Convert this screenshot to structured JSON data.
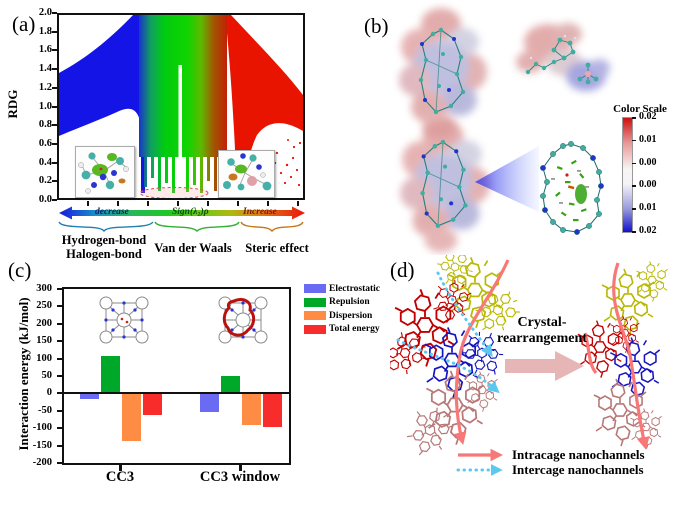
{
  "panels": {
    "a": {
      "label": "(a)",
      "ylabel": "RDG",
      "yticks": [
        "2.0",
        "1.8",
        "1.6",
        "1.4",
        "1.2",
        "1.0",
        "0.8",
        "0.6",
        "0.4",
        "0.2",
        "0.0"
      ],
      "gradient_arrow": {
        "left": "decrease",
        "center": "Sign(λ₂)ρ",
        "right": "Increase"
      },
      "groups": [
        {
          "line1": "Hydrogen-bond",
          "line2": "Halogen-bond"
        },
        {
          "line1": "Van der Waals",
          "line2": ""
        },
        {
          "line1": "Steric effect",
          "line2": ""
        }
      ]
    },
    "b": {
      "label": "(b)",
      "colorbar": {
        "title": "Color Scale",
        "ticks": [
          "0.02",
          "0.01",
          "0.00",
          "0.00",
          "0.01",
          "0.02"
        ]
      }
    },
    "c": {
      "label": "(c)"
    },
    "d": {
      "label": "(d)",
      "process_line1": "Crystal-",
      "process_line2": "rearrangement",
      "legend": [
        {
          "label": "Intracage nanochannels",
          "style": "solid",
          "color": "#f87878"
        },
        {
          "label": "Intercage nanochannels",
          "style": "dotted",
          "color": "#5bc8f0"
        }
      ]
    }
  },
  "chart_data": [
    {
      "panel": "a",
      "type": "scatter",
      "title": "",
      "xlabel": "Sign(λ₂)ρ",
      "ylabel": "RDG",
      "ylim": [
        0.0,
        2.0
      ],
      "ytick_step": 0.2,
      "x_axis_annotation": {
        "left": "decrease",
        "right": "Increase"
      },
      "regions": [
        {
          "sign": "negative",
          "color": "#1414e6",
          "interpretation": "Hydrogen-bond / Halogen-bond"
        },
        {
          "sign": "near-zero",
          "color": "#00cc10",
          "interpretation": "Van der Waals"
        },
        {
          "sign": "positive",
          "color": "#e81400",
          "interpretation": "Steric effect"
        }
      ]
    },
    {
      "panel": "c",
      "type": "bar",
      "title": "",
      "ylabel": "Interaction energy (kJ/mol)",
      "categories": [
        "CC3",
        "CC3 window"
      ],
      "series": [
        {
          "name": "Electrostatic",
          "color": "#6a6af2",
          "values": [
            -17,
            -53
          ]
        },
        {
          "name": "Repulsion",
          "color": "#00a82a",
          "values": [
            107,
            50
          ]
        },
        {
          "name": "Dispersion",
          "color": "#ff8c45",
          "values": [
            -138,
            -92
          ]
        },
        {
          "name": "Total energy",
          "color": "#f92c2c",
          "values": [
            -62,
            -96
          ]
        }
      ],
      "ylim": [
        -200,
        300
      ],
      "ytick_step": 50,
      "grid": false,
      "legend_position": "right"
    }
  ]
}
